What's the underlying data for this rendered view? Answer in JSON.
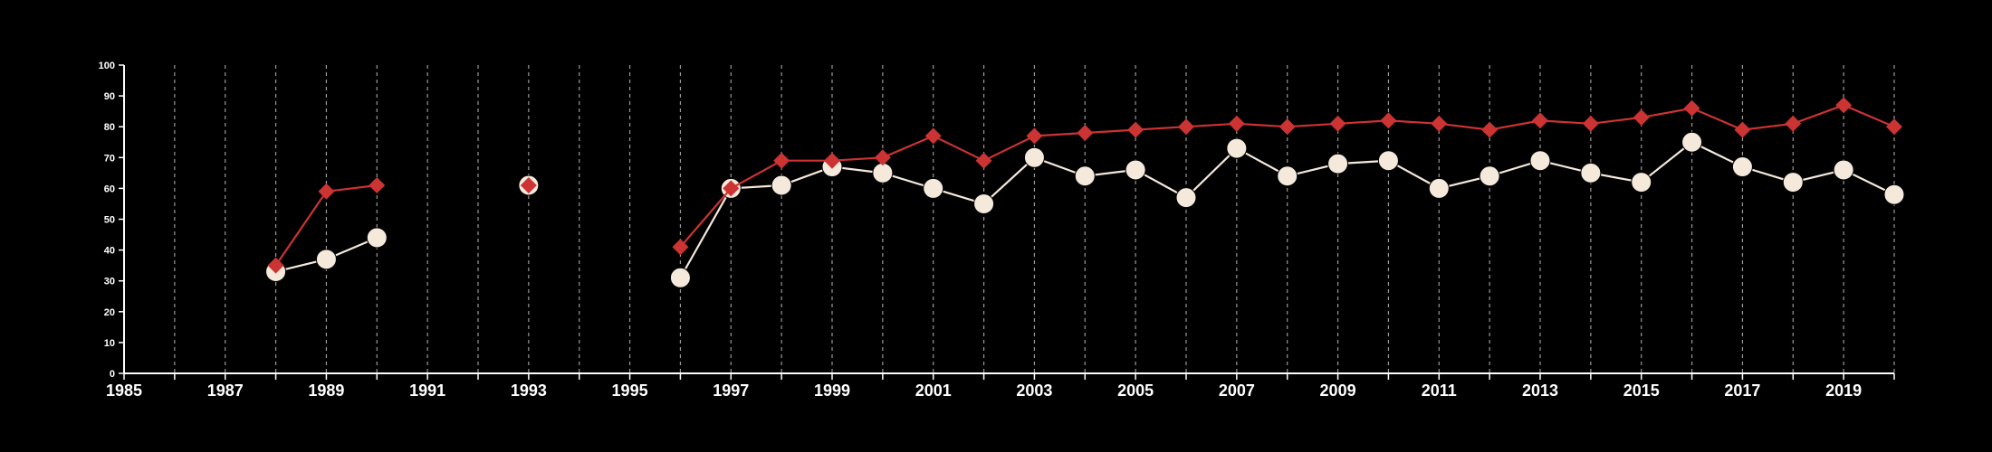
{
  "chart_data": {
    "type": "line",
    "background": "#000000",
    "grid": "vertical dashed",
    "x_range": [
      1985,
      2020
    ],
    "ylim": [
      0,
      100
    ],
    "y_ticks": [
      0,
      10,
      20,
      30,
      40,
      50,
      60,
      70,
      80,
      90,
      100
    ],
    "x_tick_labels": [
      1985,
      1987,
      1989,
      1991,
      1993,
      1995,
      1997,
      1999,
      2001,
      2003,
      2005,
      2007,
      2009,
      2011,
      2013,
      2015,
      2017,
      2019
    ],
    "x": [
      1988,
      1989,
      1990,
      1993,
      1996,
      1997,
      1998,
      1999,
      2000,
      2001,
      2002,
      2003,
      2004,
      2005,
      2006,
      2007,
      2008,
      2009,
      2010,
      2011,
      2012,
      2013,
      2014,
      2015,
      2016,
      2017,
      2018,
      2019,
      2020
    ],
    "series": [
      {
        "marker": "diamond",
        "color": "#cc3333",
        "values": [
          35,
          59,
          61,
          61,
          41,
          60,
          69,
          69,
          70,
          77,
          69,
          77,
          78,
          79,
          80,
          81,
          80,
          81,
          82,
          81,
          79,
          82,
          81,
          83,
          86,
          79,
          81,
          87,
          80
        ]
      },
      {
        "marker": "circle",
        "color": "#f5e9dc",
        "values": [
          33,
          37,
          44,
          61,
          31,
          60,
          61,
          67,
          65,
          60,
          55,
          70,
          64,
          66,
          57,
          73,
          64,
          68,
          69,
          60,
          64,
          69,
          65,
          62,
          75,
          67,
          62,
          66,
          58
        ]
      }
    ]
  }
}
